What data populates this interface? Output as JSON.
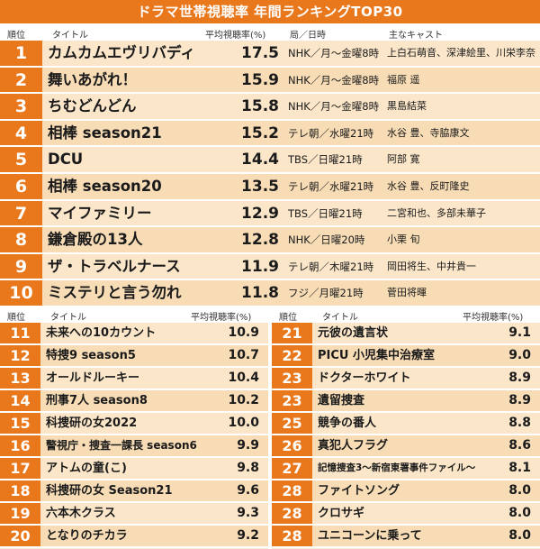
{
  "title": "ドラマ世帯視聴率 年間ランキングTOP30",
  "top_headers": {
    "rank": "順位",
    "title": "タイトル",
    "rating": "平均視聴率(%)",
    "station": "局／日時",
    "cast": "主なキャスト"
  },
  "sub_headers": {
    "rank": "順位",
    "title": "タイトル",
    "rating": "平均視聴率(%)"
  },
  "top_rows": [
    {
      "rank": "1",
      "title": "カムカムエヴリバディ",
      "rating": "17.5",
      "station": "NHK／月〜金曜8時",
      "cast": "上白石萌音、深津絵里、川栄李奈"
    },
    {
      "rank": "2",
      "title": "舞いあがれ！",
      "rating": "15.9",
      "station": "NHK／月〜金曜8時",
      "cast": "福原 遥"
    },
    {
      "rank": "3",
      "title": "ちむどんどん",
      "rating": "15.8",
      "station": "NHK／月〜金曜8時",
      "cast": "黒島結菜"
    },
    {
      "rank": "4",
      "title": "相棒 season21",
      "rating": "15.2",
      "station": "テレ朝／水曜21時",
      "cast": "水谷 豊、寺脇康文"
    },
    {
      "rank": "5",
      "title": "DCU",
      "rating": "14.4",
      "station": "TBS／日曜21時",
      "cast": "阿部 寛"
    },
    {
      "rank": "6",
      "title": "相棒 season20",
      "rating": "13.5",
      "station": "テレ朝／水曜21時",
      "cast": "水谷 豊、反町隆史"
    },
    {
      "rank": "7",
      "title": "マイファミリー",
      "rating": "12.9",
      "station": "TBS／日曜21時",
      "cast": "二宮和也、多部未華子"
    },
    {
      "rank": "8",
      "title": "鎌倉殿の13人",
      "rating": "12.8",
      "station": "NHK／日曜20時",
      "cast": "小栗 旬"
    },
    {
      "rank": "9",
      "title": "ザ・トラベルナース",
      "rating": "11.9",
      "station": "テレ朝／木曜21時",
      "cast": "岡田将生、中井貴一"
    },
    {
      "rank": "10",
      "title": "ミステリと言う勿れ",
      "rating": "11.8",
      "station": "フジ／月曜21時",
      "cast": "菅田将暉"
    }
  ],
  "left_rows": [
    {
      "rank": "11",
      "title": "未来への10カウント",
      "rating": "10.9"
    },
    {
      "rank": "12",
      "title": "特捜9 season5",
      "rating": "10.7"
    },
    {
      "rank": "13",
      "title": "オールドルーキー",
      "rating": "10.4"
    },
    {
      "rank": "14",
      "title": "刑事7人 season8",
      "rating": "10.2"
    },
    {
      "rank": "15",
      "title": "科捜研の女2022",
      "rating": "10.0"
    },
    {
      "rank": "16",
      "title": "警視庁・捜査一課長 season6",
      "rating": "9.9"
    },
    {
      "rank": "17",
      "title": "アトムの童(こ)",
      "rating": "9.8"
    },
    {
      "rank": "18",
      "title": "科捜研の女 Season21",
      "rating": "9.6"
    },
    {
      "rank": "19",
      "title": "六本木クラス",
      "rating": "9.3"
    },
    {
      "rank": "20",
      "title": "となりのチカラ",
      "rating": "9.2"
    }
  ],
  "right_rows": [
    {
      "rank": "21",
      "title": "元彼の遺言状",
      "rating": "9.1"
    },
    {
      "rank": "22",
      "title": "PICU 小児集中治療室",
      "rating": "9.0"
    },
    {
      "rank": "23",
      "title": "ドクターホワイト",
      "rating": "8.9"
    },
    {
      "rank": "23",
      "title": "遺留捜査",
      "rating": "8.9"
    },
    {
      "rank": "25",
      "title": "競争の番人",
      "rating": "8.8"
    },
    {
      "rank": "26",
      "title": "真犯人フラグ",
      "rating": "8.6"
    },
    {
      "rank": "27",
      "title": "記憶捜査3〜新宿東署事件ファイル〜",
      "rating": "8.1"
    },
    {
      "rank": "28",
      "title": "ファイトソング",
      "rating": "8.0"
    },
    {
      "rank": "28",
      "title": "クロサギ",
      "rating": "8.0"
    },
    {
      "rank": "28",
      "title": "ユニコーンに乗って",
      "rating": "8.0"
    }
  ],
  "colors": {
    "accent": "#e9781d",
    "row_light": "#fbe6c9",
    "row_dark": "#f7dcb6"
  }
}
